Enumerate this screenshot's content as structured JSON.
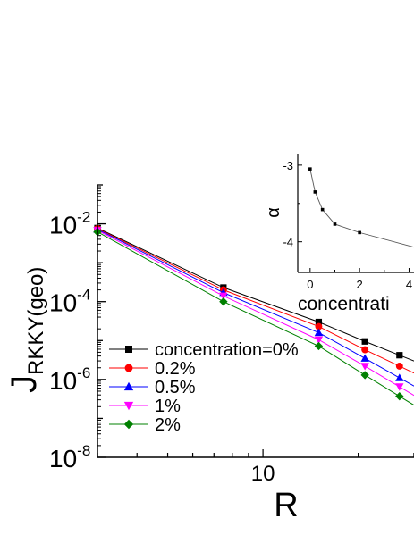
{
  "chart_data": [
    {
      "type": "line",
      "xlabel": "R",
      "ylabel": {
        "main": "J",
        "sub": "RKKY(geo)"
      },
      "xscale": "log",
      "yscale": "log",
      "xlim": [
        3,
        30
      ],
      "ylim": [
        1e-08,
        0.1
      ],
      "x_ticks": [
        {
          "value": 10,
          "label": "10"
        }
      ],
      "y_ticks": [
        {
          "value": 1e-08,
          "base": "10",
          "exp": "-8"
        },
        {
          "value": 1e-06,
          "base": "10",
          "exp": "-6"
        },
        {
          "value": 0.0001,
          "base": "10",
          "exp": "-4"
        },
        {
          "value": 0.01,
          "base": "10",
          "exp": "-2"
        }
      ],
      "legend_position": "bottom-left",
      "series": [
        {
          "name": "concentration=0%",
          "color": "#000000",
          "marker": "square",
          "x": [
            3,
            7.5,
            15,
            21,
            27
          ],
          "y": [
            0.0078,
            0.00023,
            3e-05,
            9.5e-06,
            4.2e-06
          ]
        },
        {
          "name": "0.2%",
          "color": "#ff0000",
          "marker": "circle",
          "x": [
            3,
            7.5,
            15,
            21,
            27
          ],
          "y": [
            0.0075,
            0.0002,
            2.3e-05,
            5.8e-06,
            2.2e-06
          ]
        },
        {
          "name": "0.5%",
          "color": "#0000ff",
          "marker": "triangle-up",
          "x": [
            3,
            7.5,
            15,
            21,
            27
          ],
          "y": [
            0.0072,
            0.00017,
            1.6e-05,
            3.5e-06,
            1.1e-06
          ]
        },
        {
          "name": "1%",
          "color": "#ff00ff",
          "marker": "triangle-down",
          "x": [
            3,
            7.5,
            15,
            21,
            27
          ],
          "y": [
            0.0068,
            0.00014,
            1.05e-05,
            2.2e-06,
            6.5e-07
          ]
        },
        {
          "name": "2%",
          "color": "#008000",
          "marker": "diamond",
          "x": [
            3,
            7.5,
            15,
            21,
            27
          ],
          "y": [
            0.0062,
            0.0001,
            7.2e-06,
            1.3e-06,
            3.7e-07
          ]
        }
      ]
    },
    {
      "type": "line",
      "xlabel": "concentrati",
      "ylabel": "α",
      "xlim": [
        -0.5,
        4.2
      ],
      "ylim": [
        -4.4,
        -2.85
      ],
      "x_ticks": [
        {
          "value": 0,
          "label": "0"
        },
        {
          "value": 2,
          "label": "2"
        },
        {
          "value": 4,
          "label": "4"
        }
      ],
      "y_ticks": [
        {
          "value": -3,
          "label": "-3"
        },
        {
          "value": -4,
          "label": "-4"
        }
      ],
      "series": [
        {
          "color": "#000000",
          "marker": "square",
          "x": [
            0,
            0.2,
            0.5,
            1,
            2,
            4.2
          ],
          "y": [
            -3.05,
            -3.35,
            -3.58,
            -3.77,
            -3.88,
            -4.07
          ]
        }
      ]
    }
  ]
}
